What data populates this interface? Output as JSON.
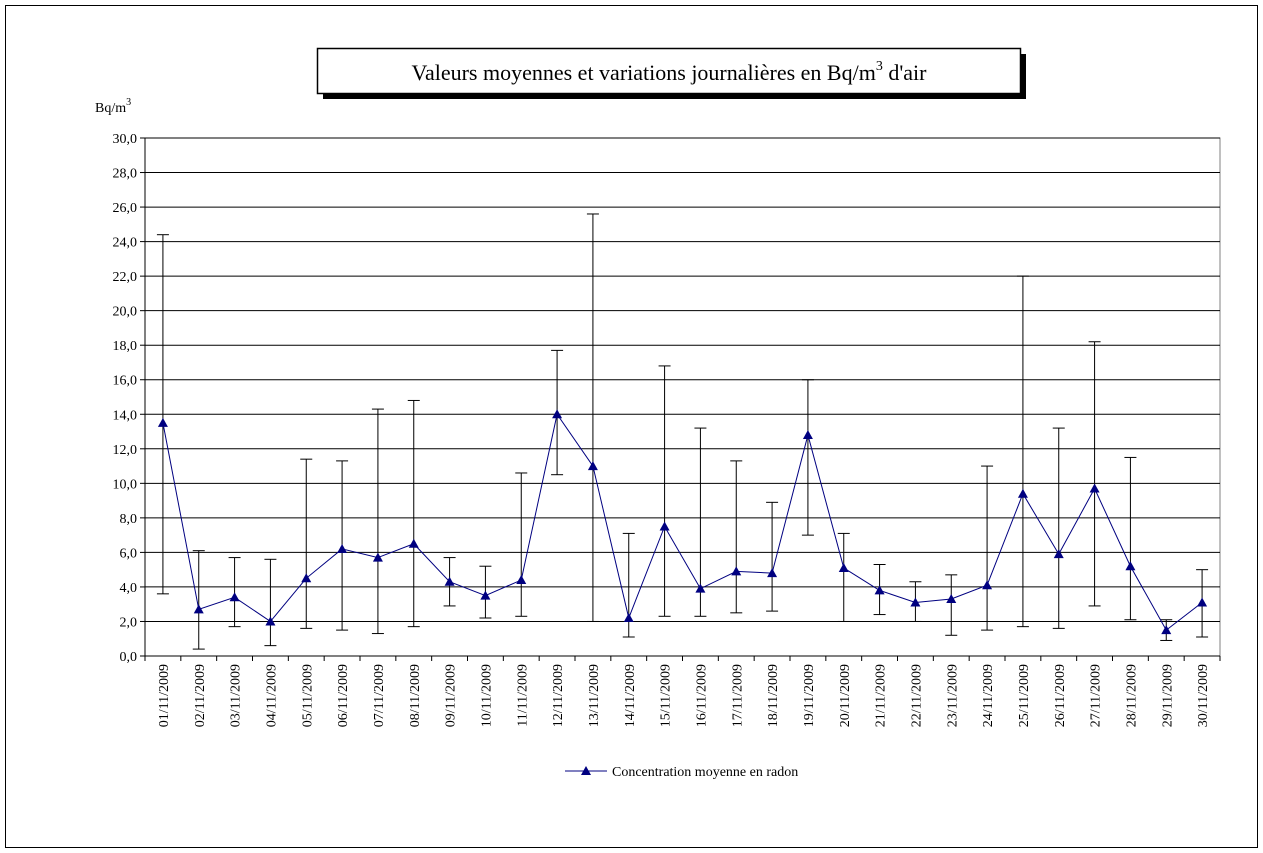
{
  "chart_data": {
    "type": "line",
    "title_parts": [
      "Valeurs moyennes et variations journalières en Bq/m",
      "3",
      " d'air"
    ],
    "y_label_parts": [
      "Bq/m",
      "3"
    ],
    "categories": [
      "01/11/2009",
      "02/11/2009",
      "03/11/2009",
      "04/11/2009",
      "05/11/2009",
      "06/11/2009",
      "07/11/2009",
      "08/11/2009",
      "09/11/2009",
      "10/11/2009",
      "11/11/2009",
      "12/11/2009",
      "13/11/2009",
      "14/11/2009",
      "15/11/2009",
      "16/11/2009",
      "17/11/2009",
      "18/11/2009",
      "19/11/2009",
      "20/11/2009",
      "21/11/2009",
      "22/11/2009",
      "23/11/2009",
      "24/11/2009",
      "25/11/2009",
      "26/11/2009",
      "27/11/2009",
      "28/11/2009",
      "29/11/2009",
      "30/11/2009"
    ],
    "series": [
      {
        "name": "Concentration moyenne en radon",
        "color": "#000080",
        "values": [
          13.5,
          2.7,
          3.4,
          2.0,
          4.5,
          6.2,
          5.7,
          6.5,
          4.3,
          3.5,
          4.4,
          14.0,
          11.0,
          2.2,
          7.5,
          3.9,
          4.9,
          4.8,
          12.8,
          5.1,
          3.8,
          3.1,
          3.3,
          4.1,
          9.4,
          5.9,
          9.7,
          5.2,
          1.5,
          3.1
        ],
        "low": [
          3.6,
          0.4,
          1.7,
          0.6,
          1.6,
          1.5,
          1.3,
          1.7,
          2.9,
          2.2,
          2.3,
          10.5,
          2.0,
          1.1,
          2.3,
          2.3,
          2.5,
          2.6,
          7.0,
          2.0,
          2.4,
          2.0,
          1.2,
          1.5,
          1.7,
          1.6,
          2.9,
          2.1,
          0.9,
          1.1
        ],
        "high": [
          24.4,
          6.1,
          5.7,
          5.6,
          11.4,
          11.3,
          14.3,
          14.8,
          5.7,
          5.2,
          10.6,
          17.7,
          25.6,
          7.1,
          16.8,
          13.2,
          11.3,
          8.9,
          16.0,
          7.1,
          5.3,
          4.3,
          4.7,
          11.0,
          22.0,
          13.2,
          18.2,
          11.5,
          2.1,
          5.0
        ]
      }
    ],
    "ylim": [
      0,
      30
    ],
    "yticks": [
      {
        "value": 0,
        "label": "0,0"
      },
      {
        "value": 2,
        "label": "2,0"
      },
      {
        "value": 4,
        "label": "4,0"
      },
      {
        "value": 6,
        "label": "6,0"
      },
      {
        "value": 8,
        "label": "8,0"
      },
      {
        "value": 10,
        "label": "10,0"
      },
      {
        "value": 12,
        "label": "12,0"
      },
      {
        "value": 14,
        "label": "14,0"
      },
      {
        "value": 16,
        "label": "16,0"
      },
      {
        "value": 18,
        "label": "18,0"
      },
      {
        "value": 20,
        "label": "20,0"
      },
      {
        "value": 22,
        "label": "22,0"
      },
      {
        "value": 24,
        "label": "24,0"
      },
      {
        "value": 26,
        "label": "26,0"
      },
      {
        "value": 28,
        "label": "28,0"
      },
      {
        "value": 30,
        "label": "30,0"
      }
    ],
    "grid": true,
    "legend": "bottom"
  }
}
